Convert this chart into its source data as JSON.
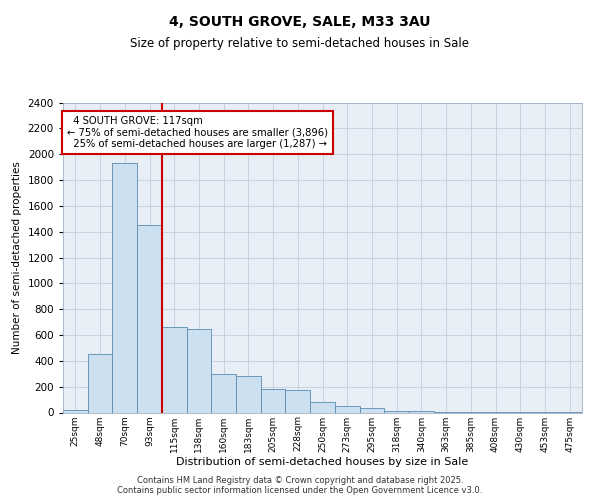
{
  "title": "4, SOUTH GROVE, SALE, M33 3AU",
  "subtitle": "Size of property relative to semi-detached houses in Sale",
  "xlabel": "Distribution of semi-detached houses by size in Sale",
  "ylabel": "Number of semi-detached properties",
  "categories": [
    "25sqm",
    "48sqm",
    "70sqm",
    "93sqm",
    "115sqm",
    "138sqm",
    "160sqm",
    "183sqm",
    "205sqm",
    "228sqm",
    "250sqm",
    "273sqm",
    "295sqm",
    "318sqm",
    "340sqm",
    "363sqm",
    "385sqm",
    "408sqm",
    "430sqm",
    "453sqm",
    "475sqm"
  ],
  "values": [
    20,
    450,
    1930,
    1450,
    660,
    650,
    300,
    280,
    185,
    175,
    80,
    50,
    35,
    15,
    15,
    5,
    2,
    1,
    1,
    1,
    1
  ],
  "bar_color": "#cce0f0",
  "bar_edge_color": "#5a8ab0",
  "marker_line_index": 3.5,
  "marker_label": "4 SOUTH GROVE: 117sqm",
  "smaller_pct": "75% of semi-detached houses are smaller (3,896)",
  "larger_pct": "25% of semi-detached houses are larger (1,287)",
  "annotation_box_color": "#ffffff",
  "annotation_box_edge": "#cc0000",
  "marker_line_color": "#cc0000",
  "ylim": [
    0,
    2400
  ],
  "yticks": [
    0,
    200,
    400,
    600,
    800,
    1000,
    1200,
    1400,
    1600,
    1800,
    2000,
    2200,
    2400
  ],
  "plot_bg": "#e8eef5",
  "footer_line1": "Contains HM Land Registry data © Crown copyright and database right 2025.",
  "footer_line2": "Contains public sector information licensed under the Open Government Licence v3.0."
}
